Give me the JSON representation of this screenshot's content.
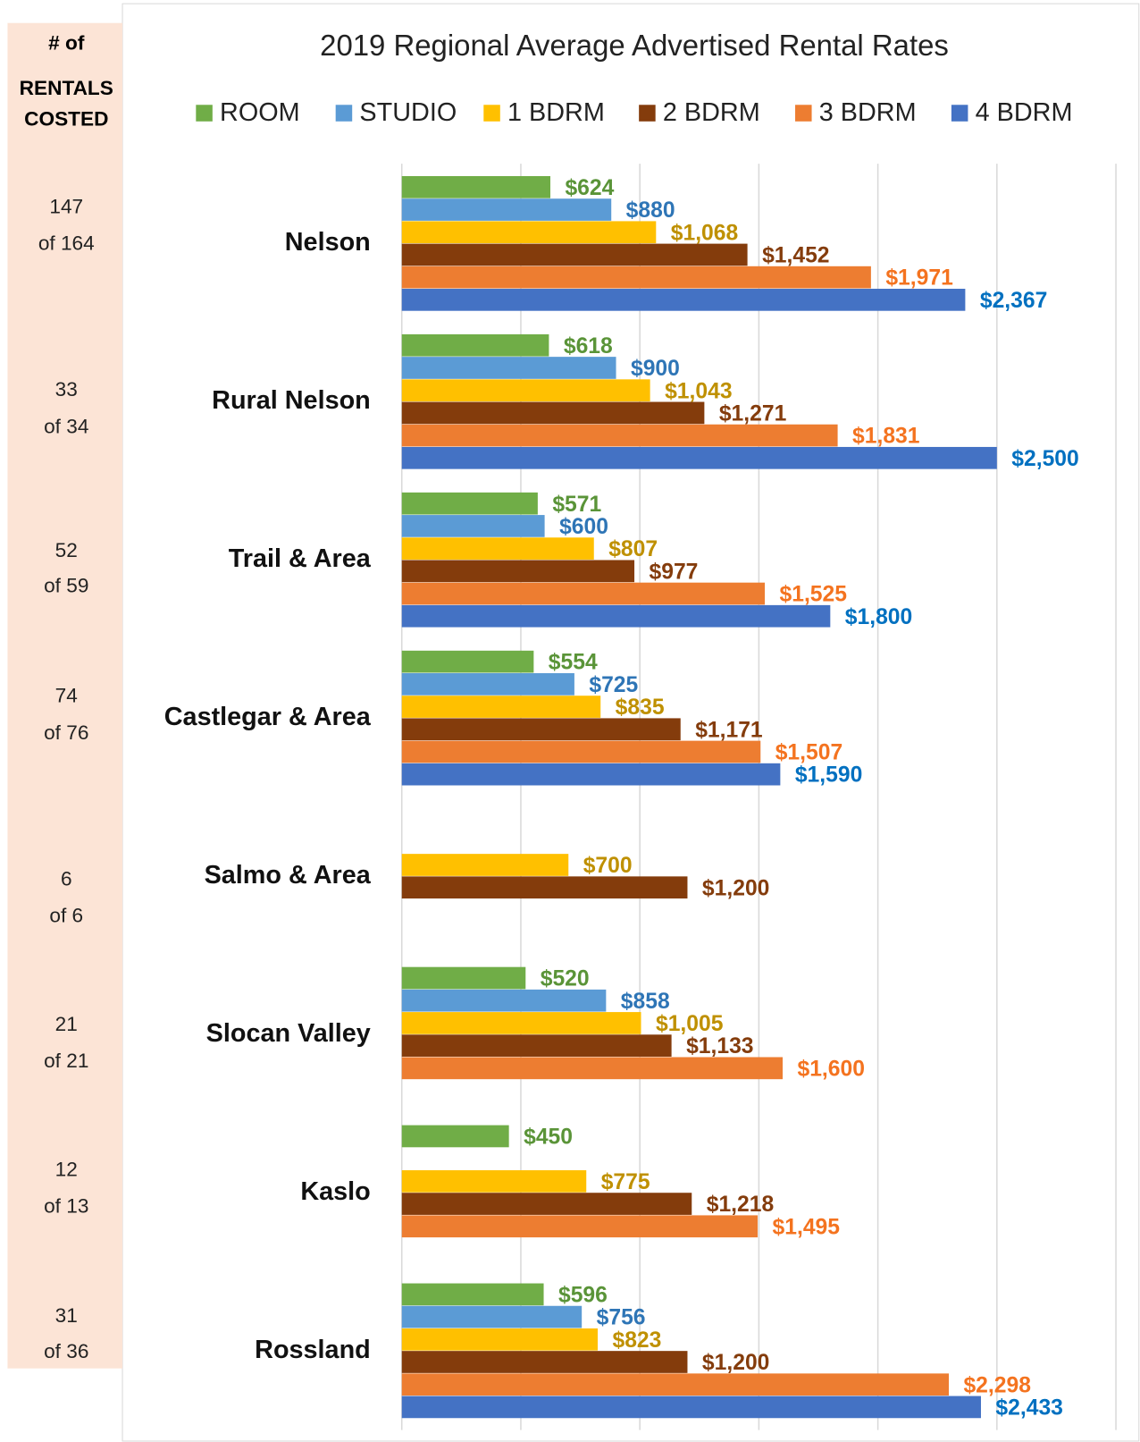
{
  "chart_data": {
    "type": "bar",
    "orientation": "horizontal",
    "title": "2019 Regional Average Advertised Rental Rates",
    "categories": [
      "Nelson",
      "Rural Nelson",
      "Trail & Area",
      "Castlegar & Area",
      "Salmo & Area",
      "Slocan Valley",
      "Kaslo",
      "Rossland"
    ],
    "xlim": [
      0,
      3000
    ],
    "xticks": [
      0,
      500,
      1000,
      1500,
      2000,
      2500,
      3000
    ],
    "grid": true,
    "series": [
      {
        "name": "ROOM",
        "color": "#70ad47",
        "label_color": "#5a9438",
        "values": [
          624,
          618,
          571,
          554,
          null,
          520,
          450,
          596
        ],
        "value_labels": [
          "$624",
          "$618",
          "$571",
          "$554",
          null,
          "$520",
          "$450",
          "$596"
        ]
      },
      {
        "name": "STUDIO",
        "color": "#5b9bd5",
        "label_color": "#2e75b6",
        "values": [
          880,
          900,
          600,
          725,
          null,
          858,
          null,
          756
        ],
        "value_labels": [
          "$880",
          "$900",
          "$600",
          "$725",
          null,
          "$858",
          null,
          "$756"
        ]
      },
      {
        "name": "1 BDRM",
        "color": "#ffc000",
        "label_color": "#bf9000",
        "values": [
          1068,
          1043,
          807,
          835,
          700,
          1005,
          775,
          823
        ],
        "value_labels": [
          "$1,068",
          "$1,043",
          "$807",
          "$835",
          "$700",
          "$1,005",
          "$775",
          "$823"
        ]
      },
      {
        "name": "2 BDRM",
        "color": "#843c0c",
        "label_color": "#843c0c",
        "values": [
          1452,
          1271,
          977,
          1171,
          1200,
          1133,
          1218,
          1200
        ],
        "value_labels": [
          "$1,452",
          "$1,271",
          "$977",
          "$1,171",
          "$1,200",
          "$1,133",
          "$1,218",
          "$1,200"
        ]
      },
      {
        "name": "3 BDRM",
        "color": "#ed7d31",
        "label_color": "#f4731f",
        "values": [
          1971,
          1831,
          1525,
          1507,
          null,
          1600,
          1495,
          2298
        ],
        "value_labels": [
          "$1,971",
          "$1,831",
          "$1,525",
          "$1,507",
          null,
          "$1,600",
          "$1,495",
          "$2,298"
        ]
      },
      {
        "name": "4 BDRM",
        "color": "#4472c4",
        "label_color": "#0070c0",
        "values": [
          2367,
          2500,
          1800,
          1590,
          null,
          null,
          null,
          2433
        ],
        "value_labels": [
          "$2,367",
          "$2,500",
          "$1,800",
          "$1,590",
          null,
          null,
          null,
          "$2,433"
        ]
      }
    ]
  },
  "side_panel": {
    "title_lines": [
      "# of",
      "RENTALS",
      "COSTED"
    ],
    "rows": [
      [
        "147",
        "of 164"
      ],
      [
        "33",
        "of 34"
      ],
      [
        "52",
        "of 59"
      ],
      [
        "74",
        "of 76"
      ],
      [
        "6",
        "of 6"
      ],
      [
        "21",
        "of 21"
      ],
      [
        "12",
        "of 13"
      ],
      [
        "31",
        "of 36"
      ]
    ]
  }
}
